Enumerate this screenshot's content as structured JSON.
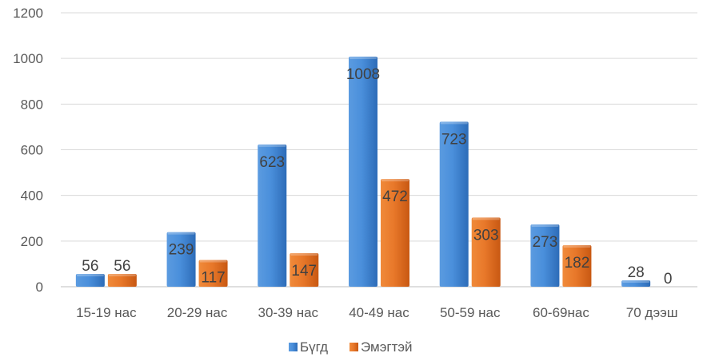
{
  "chart_data": {
    "type": "bar",
    "categories": [
      "15-19 нас",
      "20-29 нас",
      "30-39 нас",
      "40-49 нас",
      "50-59 нас",
      "60-69нас",
      "70 дээш"
    ],
    "series": [
      {
        "name": "Бүгд",
        "values": [
          56,
          239,
          623,
          1008,
          723,
          273,
          28
        ],
        "color": "#3b7fd0"
      },
      {
        "name": "Эмэгтэй",
        "values": [
          56,
          117,
          147,
          472,
          303,
          182,
          0
        ],
        "color": "#e2671d"
      }
    ],
    "title": "",
    "xlabel": "",
    "ylabel": "",
    "ylim": [
      0,
      1200
    ],
    "yticks": [
      0,
      200,
      400,
      600,
      800,
      1000,
      1200
    ],
    "grid": true,
    "legend_position": "bottom",
    "data_labels": true
  }
}
